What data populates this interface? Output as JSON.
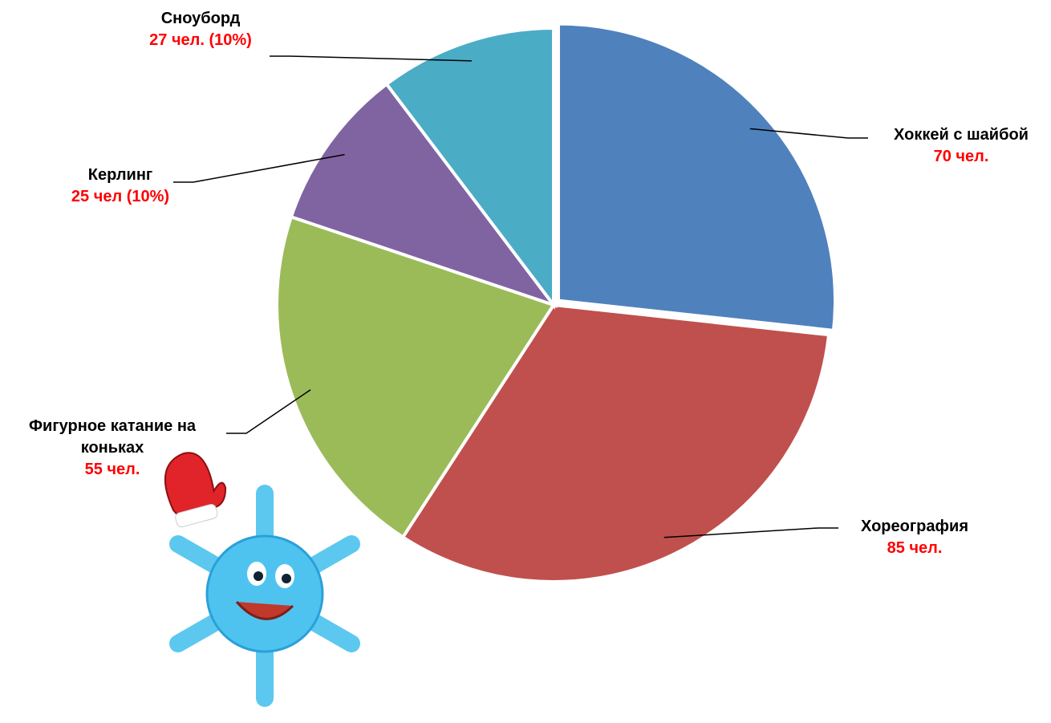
{
  "chart_data": {
    "type": "pie",
    "categories": [
      "Хоккей с шайбой",
      "Хореография",
      "Фигурное катание на коньках",
      "Керлинг",
      "Сноуборд"
    ],
    "values": [
      70,
      85,
      55,
      25,
      27
    ],
    "value_labels": [
      "70 чел.",
      "85 чел.",
      "55 чел.",
      "25 чел (10%)",
      "27 чел. (10%)"
    ],
    "colors": [
      "#4f81bd",
      "#c0504d",
      "#9bbb59",
      "#8064a2",
      "#4bacc6"
    ]
  }
}
